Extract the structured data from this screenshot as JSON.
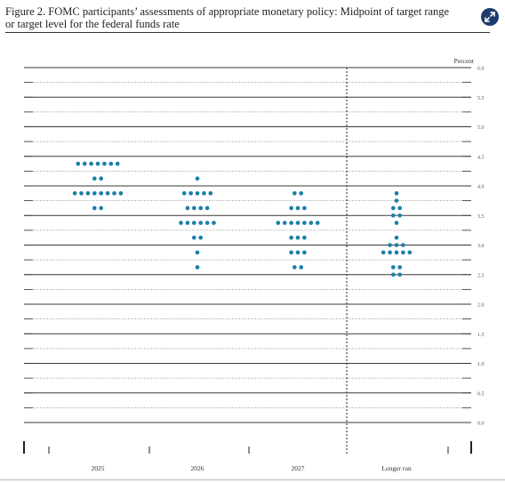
{
  "figure": {
    "caption_line1": "Figure 2.  FOMC participants’ assessments of appropriate monetary policy:  Midpoint of target range",
    "caption_line2": "or target level for the federal funds rate"
  },
  "icons": {
    "expand": "expand-arrows-icon"
  },
  "colors": {
    "dot": "#1a7fa8",
    "accent_button": "#1d3c6e"
  },
  "chart_data": {
    "type": "scatter",
    "title": "",
    "ylabel": "Percent",
    "ylim": [
      0,
      6
    ],
    "y_ticks": [
      "6.0",
      "5.5",
      "5.0",
      "4.5",
      "4.0",
      "3.5",
      "3.0",
      "2.5",
      "2.0",
      "1.5",
      "1.0",
      "0.5",
      "0.0"
    ],
    "y_tick_values": [
      6.0,
      5.5,
      5.0,
      4.5,
      4.0,
      3.5,
      3.0,
      2.5,
      2.0,
      1.5,
      1.0,
      0.5,
      0.0
    ],
    "categories": [
      "2025",
      "2026",
      "2027",
      "Longer run"
    ],
    "series": [
      {
        "category": "2025",
        "points": [
          {
            "y": 4.375,
            "count": 7
          },
          {
            "y": 4.125,
            "count": 2
          },
          {
            "y": 3.875,
            "count": 8
          },
          {
            "y": 3.625,
            "count": 2
          }
        ]
      },
      {
        "category": "2026",
        "points": [
          {
            "y": 4.125,
            "count": 1
          },
          {
            "y": 3.875,
            "count": 5
          },
          {
            "y": 3.625,
            "count": 4
          },
          {
            "y": 3.375,
            "count": 6
          },
          {
            "y": 3.125,
            "count": 2
          },
          {
            "y": 2.875,
            "count": 1
          },
          {
            "y": 2.625,
            "count": 1
          }
        ]
      },
      {
        "category": "2027",
        "points": [
          {
            "y": 3.875,
            "count": 2
          },
          {
            "y": 3.625,
            "count": 3
          },
          {
            "y": 3.375,
            "count": 7
          },
          {
            "y": 3.125,
            "count": 3
          },
          {
            "y": 2.875,
            "count": 3
          },
          {
            "y": 2.625,
            "count": 2
          }
        ]
      },
      {
        "category": "Longer run",
        "points": [
          {
            "y": 3.875,
            "count": 1
          },
          {
            "y": 3.75,
            "count": 1
          },
          {
            "y": 3.625,
            "count": 2
          },
          {
            "y": 3.5,
            "count": 2
          },
          {
            "y": 3.375,
            "count": 1
          },
          {
            "y": 3.125,
            "count": 1
          },
          {
            "y": 3.0,
            "count": 3
          },
          {
            "y": 2.875,
            "count": 5
          },
          {
            "y": 2.625,
            "count": 2
          },
          {
            "y": 2.5,
            "count": 2
          }
        ]
      }
    ],
    "grid": true,
    "separator_before": "Longer run"
  }
}
